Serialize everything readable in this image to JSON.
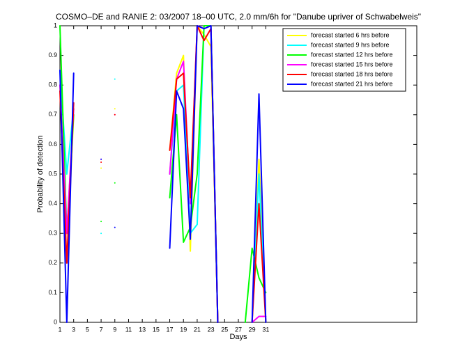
{
  "chart_data": {
    "type": "line",
    "title": "COSMO–DE and RANIE 2: 03/2007 18–00 UTC, 2.0 mm/6h for \"Danube upriver of Schwabelweis\"",
    "x_label": "Days",
    "y_label": "Probability of detection",
    "x": [
      1,
      2,
      3,
      4,
      5,
      6,
      7,
      8,
      9,
      10,
      11,
      12,
      13,
      14,
      15,
      16,
      17,
      18,
      19,
      20,
      21,
      22,
      23,
      24,
      25,
      26,
      27,
      28,
      29,
      30,
      31
    ],
    "xlim": [
      1,
      53
    ],
    "xticks": [
      1,
      3,
      5,
      7,
      9,
      11,
      13,
      15,
      17,
      19,
      21,
      23,
      25,
      27,
      29,
      31
    ],
    "ylim": [
      0,
      1
    ],
    "yticks": [
      0,
      0.1,
      0.2,
      0.3,
      0.4,
      0.5,
      0.6,
      0.7,
      0.8,
      0.9,
      1
    ],
    "legend": "northeast",
    "series": [
      {
        "name": "forecast started 6 hrs before",
        "color": "#ffff00",
        "values": [
          0.8,
          0.2,
          0.7,
          null,
          null,
          null,
          0.52,
          null,
          0.72,
          null,
          null,
          null,
          null,
          null,
          null,
          null,
          0.58,
          0.84,
          0.9,
          0.24,
          1,
          0.97,
          0.93,
          0,
          null,
          null,
          null,
          null,
          0,
          0.55,
          0
        ]
      },
      {
        "name": "forecast started 9 hrs before",
        "color": "#00ffff",
        "values": [
          0.85,
          0.5,
          0.72,
          null,
          null,
          null,
          0.3,
          null,
          0.82,
          null,
          null,
          null,
          null,
          null,
          null,
          null,
          0.5,
          0.78,
          0.8,
          0.3,
          0.33,
          1,
          1,
          0,
          null,
          null,
          null,
          null,
          0,
          0.5,
          0
        ]
      },
      {
        "name": "forecast started 12 hrs before",
        "color": "#00ff00",
        "values": [
          1,
          0.3,
          0.7,
          null,
          null,
          null,
          0.34,
          null,
          0.47,
          null,
          null,
          null,
          null,
          null,
          null,
          null,
          0.42,
          0.7,
          0.27,
          0.32,
          0.5,
          1,
          1,
          0,
          null,
          null,
          null,
          0,
          0.25,
          0.15,
          0.1
        ]
      },
      {
        "name": "forecast started 15 hrs before",
        "color": "#ff00ff",
        "values": [
          0.8,
          0.3,
          0.72,
          null,
          null,
          null,
          0.55,
          null,
          0.7,
          null,
          null,
          null,
          null,
          null,
          null,
          null,
          0.5,
          0.82,
          0.88,
          0.4,
          1,
          0.99,
          1,
          0,
          null,
          null,
          null,
          null,
          0,
          0.02,
          0.02
        ]
      },
      {
        "name": "forecast started 18 hrs before",
        "color": "#ff0000",
        "values": [
          0.78,
          0.2,
          0.74,
          null,
          null,
          null,
          0.54,
          null,
          0.7,
          null,
          null,
          null,
          null,
          null,
          null,
          null,
          0.58,
          0.82,
          0.84,
          0.42,
          1,
          0.95,
          0.99,
          0,
          null,
          null,
          null,
          null,
          0,
          0.4,
          0
        ]
      },
      {
        "name": "forecast started 21 hrs before",
        "color": "#0000ff",
        "values": [
          0.85,
          0,
          0.84,
          null,
          null,
          null,
          0.55,
          null,
          0.32,
          null,
          null,
          null,
          null,
          null,
          null,
          null,
          0.25,
          0.78,
          0.72,
          0.28,
          1,
          0.99,
          1,
          0,
          null,
          null,
          null,
          null,
          0,
          0.77,
          0
        ]
      }
    ]
  }
}
